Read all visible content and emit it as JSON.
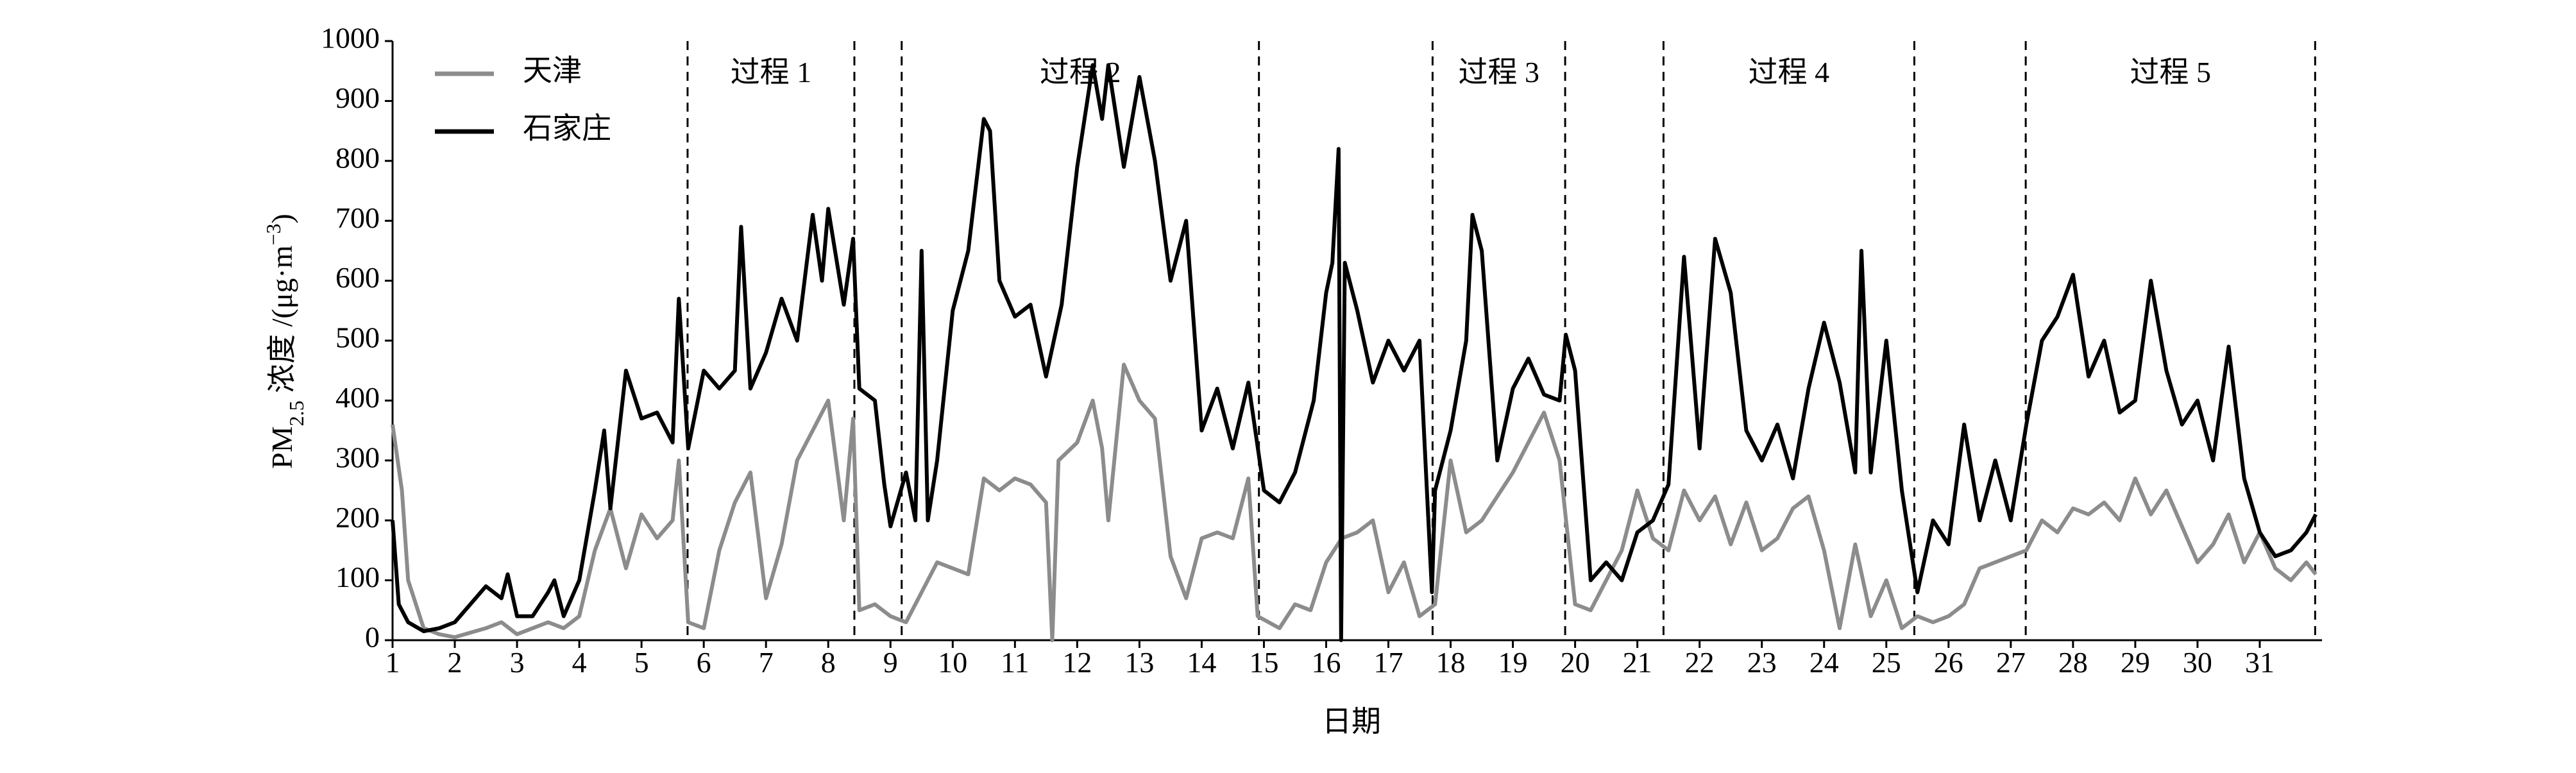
{
  "chart_data": {
    "type": "line",
    "x_label": "日期",
    "y_label": [
      {
        "text": "PM"
      },
      {
        "text": "2.5",
        "shift": "sub"
      },
      {
        "text": " 浓度 /(μg·m"
      },
      {
        "text": "−3",
        "shift": "super"
      },
      {
        "text": ")"
      }
    ],
    "xlim": [
      1,
      32
    ],
    "ylim": [
      0,
      1000
    ],
    "xticks": [
      1,
      2,
      3,
      4,
      5,
      6,
      7,
      8,
      9,
      10,
      11,
      12,
      13,
      14,
      15,
      16,
      17,
      18,
      19,
      20,
      21,
      22,
      23,
      24,
      25,
      26,
      27,
      28,
      29,
      30,
      31
    ],
    "yticks": [
      0,
      100,
      200,
      300,
      400,
      500,
      600,
      700,
      800,
      900,
      1000
    ],
    "legend": "upper left",
    "processes": [
      {
        "label": "过程 1",
        "start": 5.74,
        "end": 8.42
      },
      {
        "label": "过程 2",
        "start": 9.18,
        "end": 14.92
      },
      {
        "label": "过程 3",
        "start": 17.71,
        "end": 19.84
      },
      {
        "label": "过程 4",
        "start": 21.42,
        "end": 25.45
      },
      {
        "label": "过程 5",
        "start": 27.24,
        "end": 31.89
      }
    ],
    "series": [
      {
        "name": "天津",
        "color": "#8c8c8c",
        "x": [
          1.0,
          1.15,
          1.25,
          1.5,
          1.75,
          2.0,
          2.5,
          2.75,
          3.0,
          3.25,
          3.5,
          3.75,
          4.0,
          4.25,
          4.5,
          4.75,
          5.0,
          5.25,
          5.5,
          5.6,
          5.75,
          6.0,
          6.25,
          6.5,
          6.75,
          7.0,
          7.25,
          7.5,
          7.75,
          8.0,
          8.25,
          8.4,
          8.5,
          8.75,
          9.0,
          9.25,
          9.5,
          9.75,
          10.0,
          10.25,
          10.5,
          10.75,
          11.0,
          11.25,
          11.5,
          11.6,
          11.7,
          12.0,
          12.25,
          12.4,
          12.5,
          12.75,
          13.0,
          13.25,
          13.5,
          13.75,
          14.0,
          14.25,
          14.5,
          14.75,
          14.9,
          15.25,
          15.5,
          15.75,
          16.0,
          16.25,
          16.5,
          16.75,
          17.0,
          17.25,
          17.5,
          17.75,
          18.0,
          18.25,
          18.5,
          18.75,
          19.0,
          19.25,
          19.5,
          19.75,
          20.0,
          20.25,
          20.5,
          20.75,
          21.0,
          21.25,
          21.5,
          21.75,
          22.0,
          22.25,
          22.5,
          22.75,
          23.0,
          23.25,
          23.5,
          23.75,
          24.0,
          24.25,
          24.5,
          24.75,
          25.0,
          25.25,
          25.5,
          25.75,
          26.0,
          26.25,
          26.5,
          26.75,
          27.0,
          27.25,
          27.5,
          27.75,
          28.0,
          28.25,
          28.5,
          28.75,
          29.0,
          29.25,
          29.5,
          29.75,
          30.0,
          30.25,
          30.5,
          30.75,
          31.0,
          31.25,
          31.5,
          31.75,
          31.9
        ],
        "values": [
          360,
          250,
          100,
          20,
          10,
          5,
          20,
          30,
          10,
          20,
          30,
          20,
          40,
          150,
          220,
          120,
          210,
          170,
          200,
          300,
          30,
          20,
          150,
          230,
          280,
          70,
          160,
          300,
          350,
          400,
          200,
          370,
          50,
          60,
          40,
          30,
          80,
          130,
          120,
          110,
          270,
          250,
          270,
          260,
          230,
          0,
          300,
          330,
          400,
          320,
          200,
          460,
          400,
          370,
          140,
          70,
          170,
          180,
          170,
          270,
          40,
          20,
          60,
          50,
          130,
          170,
          180,
          200,
          80,
          130,
          40,
          60,
          300,
          180,
          200,
          240,
          280,
          330,
          380,
          300,
          60,
          50,
          100,
          150,
          250,
          170,
          150,
          250,
          200,
          240,
          160,
          230,
          150,
          170,
          220,
          240,
          150,
          20,
          160,
          40,
          100,
          20,
          40,
          30,
          40,
          60,
          120,
          130,
          140,
          150,
          200,
          180,
          220,
          210,
          230,
          200,
          270,
          210,
          250,
          190,
          130,
          160,
          210,
          130,
          180,
          120,
          100,
          130,
          110
        ]
      },
      {
        "name": "石家庄",
        "color": "#000000",
        "x": [
          1.0,
          1.1,
          1.25,
          1.5,
          1.75,
          2.0,
          2.25,
          2.5,
          2.75,
          2.85,
          3.0,
          3.25,
          3.5,
          3.6,
          3.75,
          4.0,
          4.25,
          4.4,
          4.5,
          4.75,
          5.0,
          5.25,
          5.5,
          5.6,
          5.75,
          6.0,
          6.25,
          6.5,
          6.6,
          6.75,
          7.0,
          7.25,
          7.5,
          7.75,
          7.9,
          8.0,
          8.25,
          8.4,
          8.5,
          8.75,
          8.9,
          9.0,
          9.25,
          9.4,
          9.5,
          9.6,
          9.75,
          10.0,
          10.25,
          10.5,
          10.6,
          10.75,
          11.0,
          11.25,
          11.5,
          11.75,
          12.0,
          12.25,
          12.4,
          12.5,
          12.75,
          13.0,
          13.25,
          13.5,
          13.75,
          14.0,
          14.25,
          14.5,
          14.75,
          15.0,
          15.25,
          15.5,
          15.8,
          16.0,
          16.1,
          16.2,
          16.24,
          16.3,
          16.5,
          16.75,
          17.0,
          17.25,
          17.5,
          17.7,
          17.75,
          18.0,
          18.25,
          18.35,
          18.5,
          18.75,
          19.0,
          19.25,
          19.5,
          19.75,
          19.85,
          20.0,
          20.25,
          20.5,
          20.75,
          21.0,
          21.25,
          21.5,
          21.75,
          22.0,
          22.25,
          22.5,
          22.75,
          23.0,
          23.25,
          23.5,
          23.75,
          24.0,
          24.25,
          24.5,
          24.6,
          24.75,
          25.0,
          25.25,
          25.5,
          25.75,
          26.0,
          26.25,
          26.5,
          26.75,
          27.0,
          27.25,
          27.5,
          27.75,
          28.0,
          28.25,
          28.5,
          28.75,
          29.0,
          29.25,
          29.5,
          29.75,
          30.0,
          30.25,
          30.5,
          30.75,
          31.0,
          31.25,
          31.5,
          31.75,
          31.9
        ],
        "values": [
          200,
          60,
          30,
          15,
          20,
          30,
          60,
          90,
          70,
          110,
          40,
          40,
          80,
          100,
          40,
          100,
          250,
          350,
          220,
          450,
          370,
          380,
          330,
          570,
          320,
          450,
          420,
          450,
          690,
          420,
          480,
          570,
          500,
          710,
          600,
          720,
          560,
          670,
          420,
          400,
          260,
          190,
          280,
          200,
          650,
          200,
          300,
          550,
          650,
          870,
          850,
          600,
          540,
          560,
          440,
          560,
          790,
          960,
          870,
          960,
          790,
          940,
          800,
          600,
          700,
          350,
          420,
          320,
          430,
          250,
          230,
          280,
          400,
          580,
          630,
          820,
          0,
          630,
          550,
          430,
          500,
          450,
          500,
          80,
          250,
          350,
          500,
          710,
          650,
          300,
          420,
          470,
          410,
          400,
          510,
          450,
          100,
          130,
          100,
          180,
          200,
          260,
          640,
          320,
          670,
          580,
          350,
          300,
          360,
          270,
          420,
          530,
          430,
          280,
          650,
          280,
          500,
          250,
          80,
          200,
          160,
          360,
          200,
          300,
          200,
          360,
          500,
          540,
          610,
          440,
          500,
          380,
          400,
          600,
          450,
          360,
          400,
          300,
          490,
          270,
          180,
          140,
          150,
          180,
          210
        ]
      }
    ]
  }
}
